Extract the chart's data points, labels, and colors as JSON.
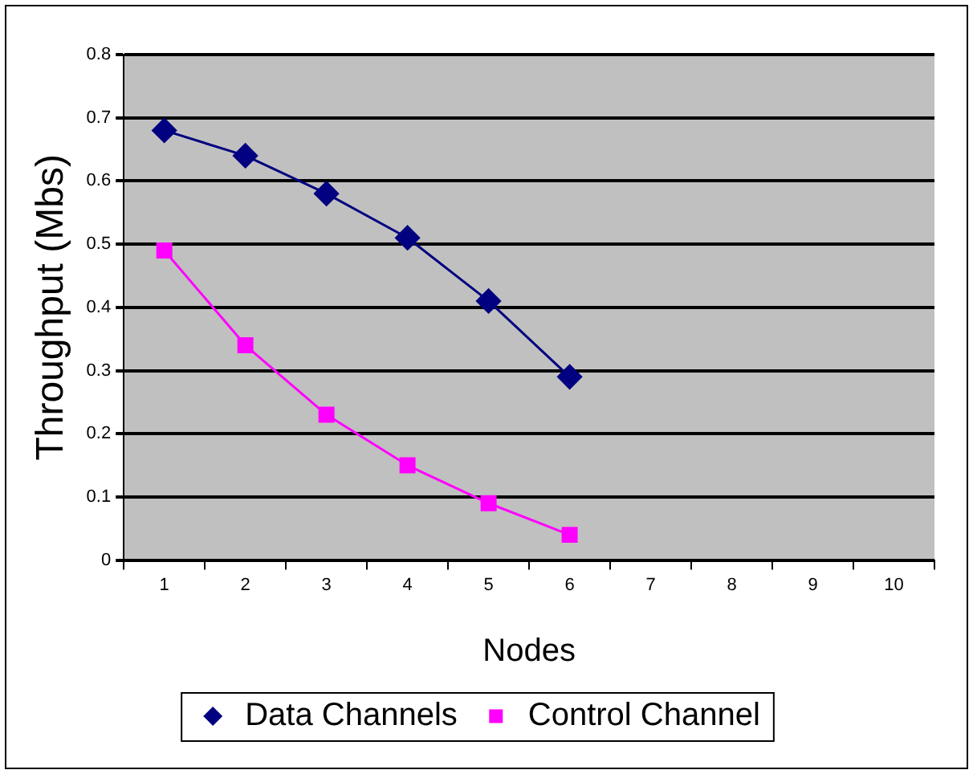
{
  "chart_data": {
    "type": "line",
    "xlabel": "Nodes",
    "ylabel": "Throughput (Mbs)",
    "categories": [
      "1",
      "2",
      "3",
      "4",
      "5",
      "6",
      "7",
      "8",
      "9",
      "10"
    ],
    "series": [
      {
        "name": "Data Channels",
        "color": "#000080",
        "marker": "diamond",
        "values": [
          0.68,
          0.64,
          0.58,
          0.51,
          0.41,
          0.29,
          null,
          null,
          null,
          null
        ]
      },
      {
        "name": "Control Channel",
        "color": "#ff00ff",
        "marker": "square",
        "values": [
          0.49,
          0.34,
          0.23,
          0.15,
          0.09,
          0.04,
          null,
          null,
          null,
          null
        ]
      }
    ],
    "ylim": [
      0,
      0.8
    ],
    "yticks": [
      0,
      0.1,
      0.2,
      0.3,
      0.4,
      0.5,
      0.6,
      0.7,
      0.8
    ],
    "grid": "y",
    "legend": "bottom",
    "line_style": "solid"
  }
}
